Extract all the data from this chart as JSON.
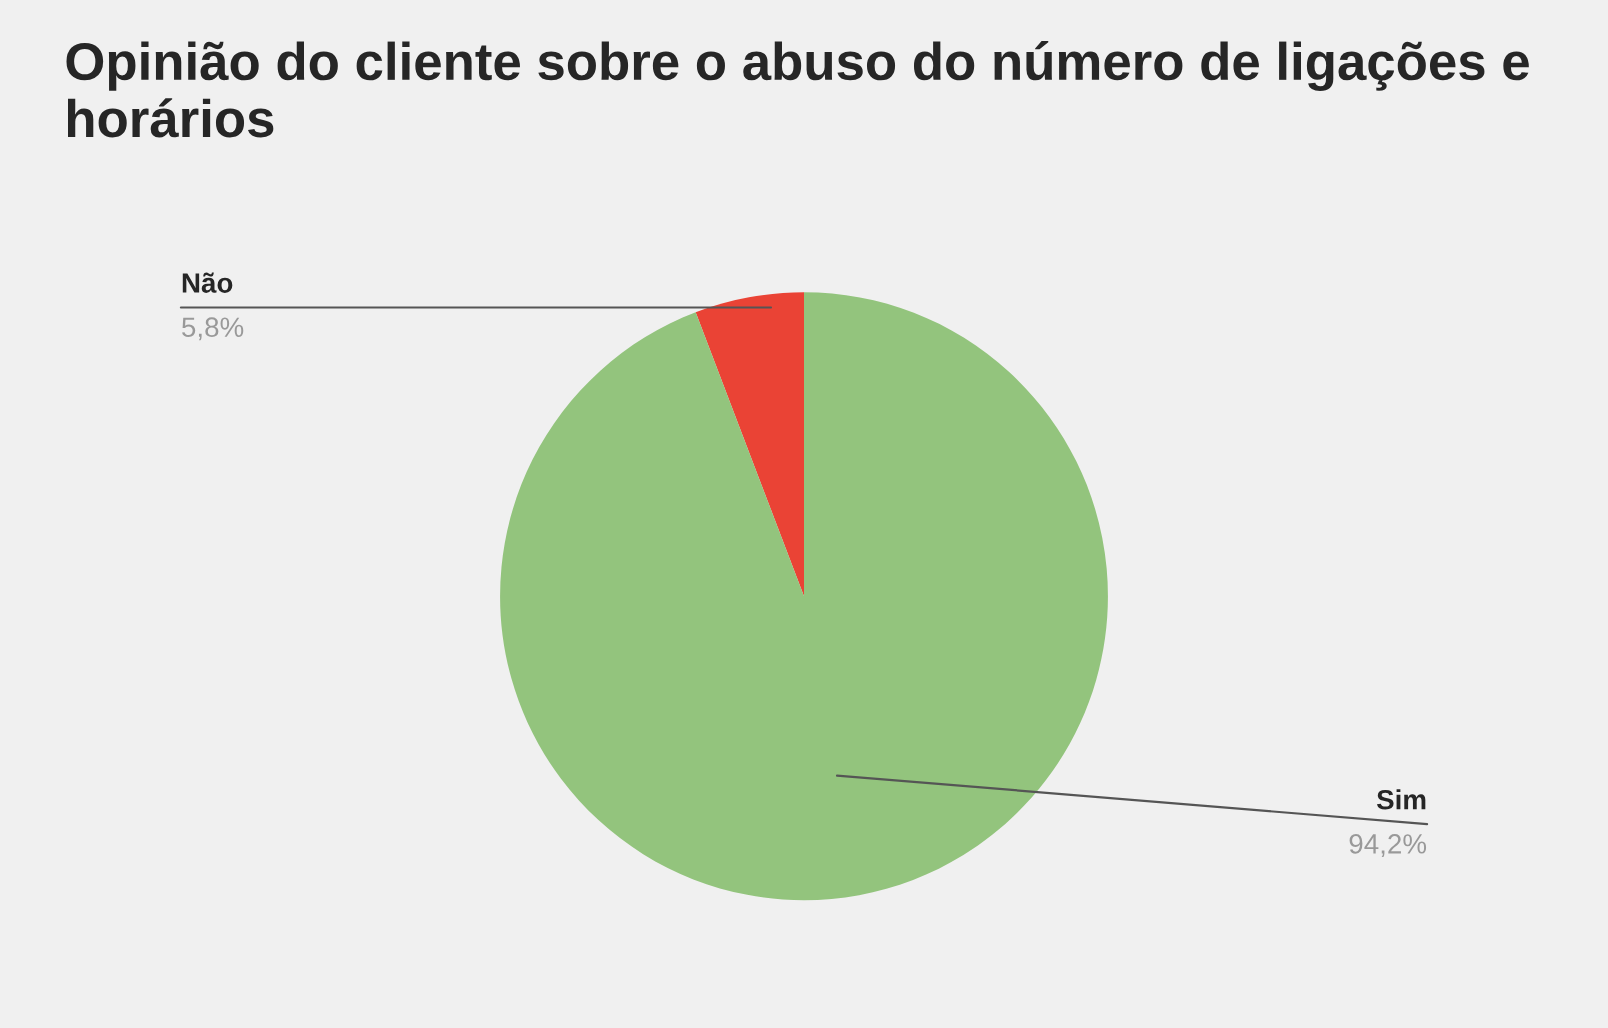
{
  "chart_data": {
    "type": "pie",
    "title": "Opinião do cliente sobre o abuso do número de ligações e horários",
    "categories": [
      "Não",
      "Sim"
    ],
    "values": [
      5.8,
      94.2
    ],
    "colors": [
      "#ea4335",
      "#93c47d"
    ],
    "value_labels": [
      "5,8%",
      "94,2%"
    ],
    "legend": false
  }
}
